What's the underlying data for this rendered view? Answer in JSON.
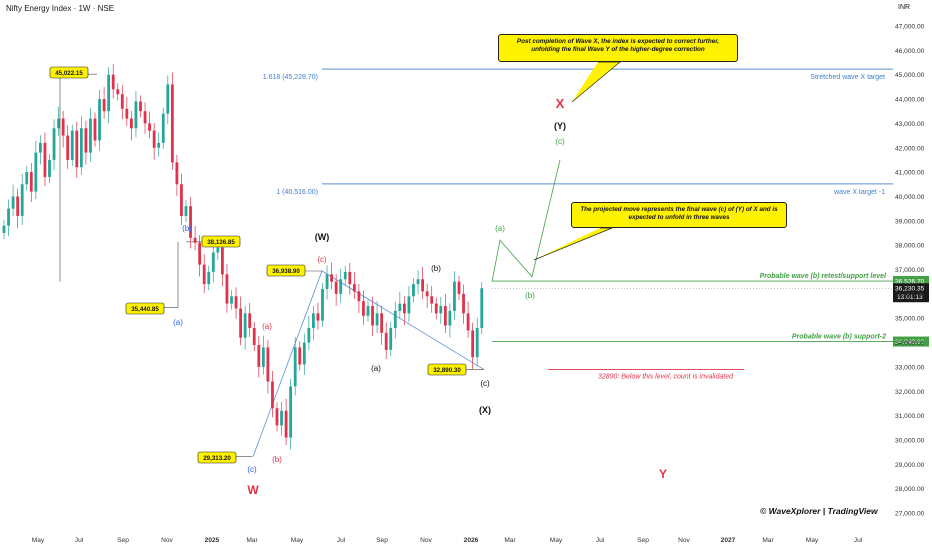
{
  "header": {
    "title": "Nifty Energy Index · 1W · NSE",
    "currency": "INR"
  },
  "chart_data": {
    "type": "candlestick",
    "title": "Nifty Energy Index · 1W · NSE",
    "currency": "INR",
    "ylim": [
      26500,
      48000
    ],
    "y_ticks": [
      "27,000.00",
      "28,000.00",
      "29,000.00",
      "30,000.00",
      "31,000.00",
      "32,000.00",
      "33,000.00",
      "34,000.00",
      "35,000.00",
      "36,000.00",
      "37,000.00",
      "38,000.00",
      "39,000.00",
      "40,000.00",
      "41,000.00",
      "42,000.00",
      "43,000.00",
      "44,000.00",
      "45,000.00",
      "46,000.00",
      "47,000.00"
    ],
    "x_ticks": [
      "May",
      "Jul",
      "Sep",
      "Nov",
      "2025",
      "Mar",
      "May",
      "Jul",
      "Sep",
      "Nov",
      "2026",
      "Mar",
      "May",
      "Jul",
      "Sep",
      "Nov",
      "2027",
      "Mar",
      "May",
      "Jul"
    ],
    "colors": {
      "up": "#26a69a",
      "down": "#e0334b",
      "wave_blue": "#2962ff",
      "wave_red": "#e0334b",
      "wave_green": "#43a047",
      "wave_black": "#111111"
    },
    "candles_close": [
      38800,
      39500,
      40000,
      39200,
      40500,
      41000,
      40200,
      41800,
      42200,
      40800,
      41500,
      42800,
      43200,
      42500,
      41500,
      42700,
      41200,
      42800,
      41800,
      43200,
      42300,
      44000,
      43500,
      45000,
      44400,
      44200,
      43600,
      43200,
      42800,
      43900,
      43500,
      43000,
      42700,
      42000,
      42200,
      43400,
      44600,
      41400,
      40500,
      39200,
      39600,
      38300,
      38100,
      37200,
      36400,
      36900,
      37700,
      37900,
      36800,
      35600,
      35900,
      35400,
      34200,
      35200,
      34600,
      33900,
      33000,
      33800,
      32400,
      31300,
      30600,
      31200,
      30100,
      32200,
      33800,
      33100,
      34000,
      34600,
      35200,
      34900,
      36200,
      36800,
      36500,
      36000,
      36600,
      36900,
      36400,
      36100,
      35700,
      35100,
      35500,
      34700,
      35200,
      34400,
      33700,
      34600,
      35300,
      35600,
      35200,
      35900,
      36400,
      36600,
      36100,
      35900,
      35600,
      35200,
      35500,
      34700,
      35300,
      36500,
      36000,
      35200,
      34500,
      33400,
      34600,
      36230
    ],
    "price_levels": [
      {
        "value": 45228.7,
        "label": "1.618 (45,228.70)",
        "right_label": "Stretched wave X target"
      },
      {
        "value": 40516.0,
        "label": "1 (40,516.00)",
        "right_label": "wave X target -1"
      },
      {
        "value": 36526.7,
        "right_label": "Probable wave (b) retest/support level",
        "tag": "36,526.70"
      },
      {
        "value": 34040.6,
        "right_label": "Probable wave (b) support-2",
        "tag": "34,040.60"
      },
      {
        "value": 32890,
        "right_label": "32890: Below this level, count is invalidated"
      }
    ],
    "current_price": {
      "value": 36230.35,
      "tag": "36,230.35",
      "countdown": "13:01:13"
    },
    "price_callouts": [
      "45,022.15",
      "38,136.85",
      "35,440.85",
      "36,938.90",
      "29,313.20",
      "32,890.30"
    ],
    "wave_labels": [
      "(a)",
      "(b)",
      "(c)",
      "(b)",
      "(c)",
      "W",
      "(W)",
      "(a)",
      "(b)",
      "(c)",
      "(X)",
      "(a)",
      "(b)",
      "(c)",
      "(Y)",
      "X",
      "Y"
    ],
    "annotations": [
      "Post completion of Wave X, the index is expected to correct further, unfolding the final Wave Y of the higher-degree correction",
      "The projected move represents the final wave (c) of (Y) of X and is expected to unfold in three waves"
    ],
    "watermark": "© WaveXplorer  |  TradingView"
  }
}
